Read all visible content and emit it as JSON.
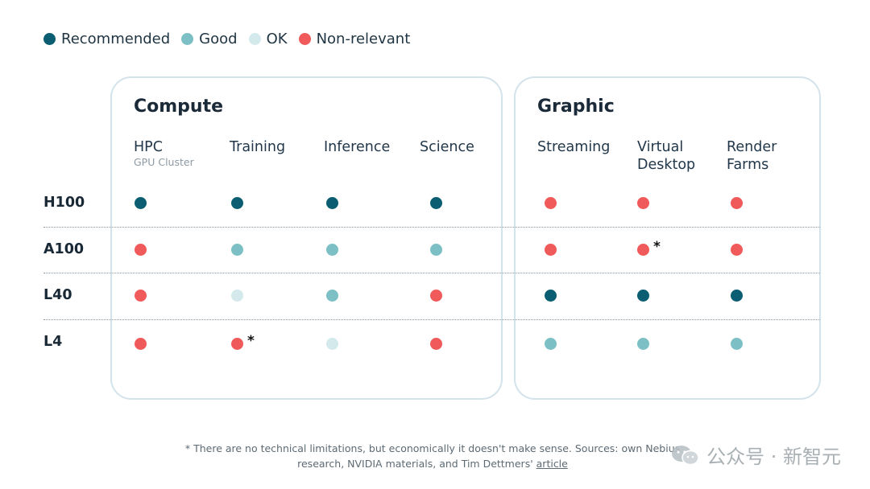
{
  "legend": [
    {
      "label": "Recommended",
      "color": "#0b5e72"
    },
    {
      "label": "Good",
      "color": "#7cc0c5"
    },
    {
      "label": "OK",
      "color": "#d3e9ec"
    },
    {
      "label": "Non-relevant",
      "color": "#f05a5a"
    }
  ],
  "groups": [
    {
      "title": "Compute"
    },
    {
      "title": "Graphic"
    }
  ],
  "columns": [
    {
      "label": "HPC",
      "sublabel": "GPU Cluster"
    },
    {
      "label": "Training",
      "sublabel": ""
    },
    {
      "label": "Inference",
      "sublabel": ""
    },
    {
      "label": "Science",
      "sublabel": ""
    },
    {
      "label": "Streaming",
      "sublabel": ""
    },
    {
      "label": "Virtual Desktop",
      "sublabel": ""
    },
    {
      "label": "Render Farms",
      "sublabel": ""
    }
  ],
  "chart_data": {
    "type": "table",
    "categories": [
      "HPC",
      "Training",
      "Inference",
      "Science",
      "Streaming",
      "Virtual Desktop",
      "Render Farms"
    ],
    "rows": [
      {
        "name": "H100",
        "values": [
          "Recommended",
          "Recommended",
          "Recommended",
          "Recommended",
          "Non-relevant",
          "Non-relevant",
          "Non-relevant"
        ],
        "asterisks": []
      },
      {
        "name": "A100",
        "values": [
          "Non-relevant",
          "Good",
          "Good",
          "Good",
          "Non-relevant",
          "Non-relevant",
          "Non-relevant"
        ],
        "asterisks": [
          5
        ]
      },
      {
        "name": "L40",
        "values": [
          "Non-relevant",
          "OK",
          "Good",
          "Non-relevant",
          "Recommended",
          "Recommended",
          "Recommended"
        ],
        "asterisks": []
      },
      {
        "name": "L4",
        "values": [
          "Non-relevant",
          "Non-relevant",
          "OK",
          "Non-relevant",
          "Good",
          "Good",
          "Good"
        ],
        "asterisks": [
          1
        ]
      }
    ]
  },
  "asterisk_mark": "*",
  "footer": {
    "text": "* There are no technical limitations, but economically it doesn't make sense. Sources: own Nebius research, NVIDIA materials, and Tim Dettmers'",
    "link_label": "article"
  },
  "watermark": {
    "text": "公众号 · 新智元"
  }
}
